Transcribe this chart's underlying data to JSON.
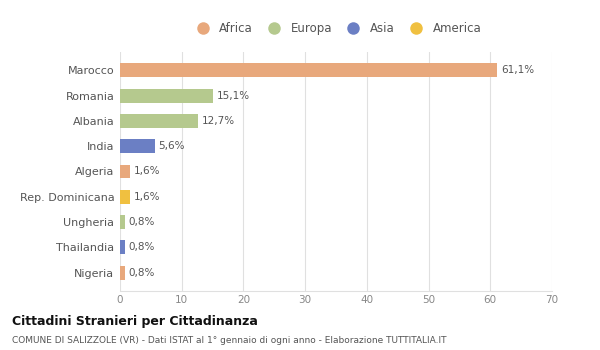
{
  "countries": [
    "Marocco",
    "Romania",
    "Albania",
    "India",
    "Algeria",
    "Rep. Dominicana",
    "Ungheria",
    "Thailandia",
    "Nigeria"
  ],
  "values": [
    61.1,
    15.1,
    12.7,
    5.6,
    1.6,
    1.6,
    0.8,
    0.8,
    0.8
  ],
  "labels": [
    "61,1%",
    "15,1%",
    "12,7%",
    "5,6%",
    "1,6%",
    "1,6%",
    "0,8%",
    "0,8%",
    "0,8%"
  ],
  "colors": [
    "#E8A87C",
    "#B5C98E",
    "#B5C98E",
    "#6B7FC4",
    "#E8A87C",
    "#F0C040",
    "#B5C98E",
    "#6B7FC4",
    "#E8A87C"
  ],
  "continents": [
    "Africa",
    "Europa",
    "Asia",
    "America"
  ],
  "legend_colors": [
    "#E8A87C",
    "#B5C98E",
    "#6B7FC4",
    "#F0C040"
  ],
  "title": "Cittadini Stranieri per Cittadinanza",
  "subtitle": "COMUNE DI SALIZZOLE (VR) - Dati ISTAT al 1° gennaio di ogni anno - Elaborazione TUTTITALIA.IT",
  "xlim": [
    0,
    70
  ],
  "xticks": [
    0,
    10,
    20,
    30,
    40,
    50,
    60,
    70
  ],
  "bg_color": "#ffffff",
  "grid_color": "#e0e0e0",
  "bar_height": 0.55
}
